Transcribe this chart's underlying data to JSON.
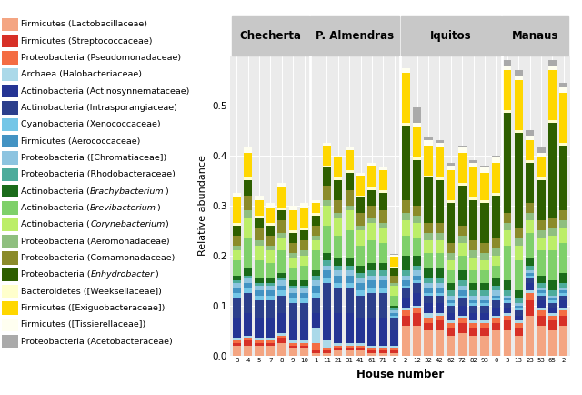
{
  "title": "",
  "ylabel": "Relative abundance",
  "xlabel": "House number",
  "ylim": [
    0,
    0.6
  ],
  "yticks": [
    0.0,
    0.1,
    0.2,
    0.3,
    0.4,
    0.5
  ],
  "groups": [
    "Checherta",
    "P. Almendras",
    "Iquitos",
    "Manaus"
  ],
  "houses": [
    "3",
    "4",
    "5",
    "7",
    "8",
    "9",
    "10",
    "1",
    "11",
    "21",
    "31",
    "41",
    "61",
    "71",
    "8",
    "2",
    "12",
    "32",
    "42",
    "62",
    "72",
    "82",
    "93",
    "0",
    "3",
    "13",
    "23",
    "53",
    "65",
    "2"
  ],
  "house_groups": [
    0,
    0,
    0,
    0,
    0,
    0,
    0,
    1,
    1,
    1,
    1,
    1,
    1,
    1,
    1,
    2,
    2,
    2,
    2,
    2,
    2,
    2,
    2,
    2,
    3,
    3,
    3,
    3,
    3,
    3
  ],
  "legend_labels": [
    "Firmicutes (Lactobacillaceae)",
    "Firmicutes (Streptococcaceae)",
    "Proteobacteria (Pseudomonadaceae)",
    "Archaea (Halobacteriaceae)",
    "Actinobacteria (Actinosynnemataceae)",
    "Actinobacteria (Intrasporangiaceae)",
    "Cyanobacteria (Xenococcaceae)",
    "Firmicutes (Aerococcaceae)",
    "Proteobacteria ([Chromatiaceae])",
    "Proteobacteria (Rhodobacteraceae)",
    "Actinobacteria (Brachybacterium)",
    "Actinobacteria (Brevibacterium)",
    "Actinobacteria (Corynebacterium)",
    "Proteobacteria (Aeromonadaceae)",
    "Proteobacteria (Comamonadaceae)",
    "Proteobacteria (Enhydrobacter)",
    "Bacteroidetes ([Weeksellaceae])",
    "Firmicutes ([Exiguobacteraceae])",
    "Firmicutes ([Tissierellaceae])",
    "Proteobacteria (Acetobacteraceae)"
  ],
  "italic_words": [
    "Brachybacterium",
    "Brevibacterium",
    "Corynebacterium",
    "Enhydrobacter"
  ],
  "colors": [
    "#F4A582",
    "#D73027",
    "#F46D43",
    "#ABD9E9",
    "#253494",
    "#2C3F8C",
    "#74C6E7",
    "#4393C3",
    "#8DC4E0",
    "#4DAC9B",
    "#1A6B1A",
    "#7FD06A",
    "#BCEE68",
    "#8FBF7F",
    "#8B8B2A",
    "#2E5F00",
    "#FFFFCC",
    "#FFD700",
    "#FFFFF0",
    "#AAAAAA"
  ],
  "background_color": "#EBEBEB",
  "bar_width": 0.75,
  "group_sep_color": "white",
  "bar_data": {
    "Checherta": {
      "3": [
        0.02,
        0.005,
        0.005,
        0.005,
        0.04,
        0.04,
        0.01,
        0.01,
        0.01,
        0.005,
        0.01,
        0.03,
        0.02,
        0.01,
        0.02,
        0.02,
        0.005,
        0.05,
        0.01,
        0.0
      ],
      "4": [
        0.02,
        0.01,
        0.005,
        0.005,
        0.045,
        0.04,
        0.01,
        0.01,
        0.01,
        0.005,
        0.015,
        0.06,
        0.04,
        0.015,
        0.03,
        0.03,
        0.005,
        0.05,
        0.01,
        0.0
      ],
      "5": [
        0.02,
        0.005,
        0.005,
        0.005,
        0.04,
        0.035,
        0.01,
        0.01,
        0.01,
        0.005,
        0.01,
        0.035,
        0.03,
        0.01,
        0.025,
        0.02,
        0.005,
        0.03,
        0.01,
        0.0
      ],
      "7": [
        0.02,
        0.005,
        0.005,
        0.005,
        0.04,
        0.035,
        0.01,
        0.01,
        0.01,
        0.005,
        0.01,
        0.03,
        0.025,
        0.01,
        0.02,
        0.02,
        0.005,
        0.03,
        0.01,
        0.0
      ],
      "8": [
        0.025,
        0.01,
        0.005,
        0.005,
        0.04,
        0.035,
        0.01,
        0.01,
        0.01,
        0.005,
        0.01,
        0.045,
        0.025,
        0.01,
        0.025,
        0.02,
        0.005,
        0.04,
        0.01,
        0.0
      ],
      "9": [
        0.015,
        0.005,
        0.005,
        0.005,
        0.04,
        0.035,
        0.01,
        0.01,
        0.01,
        0.005,
        0.01,
        0.025,
        0.02,
        0.01,
        0.02,
        0.02,
        0.005,
        0.04,
        0.01,
        0.0
      ],
      "10": [
        0.015,
        0.005,
        0.005,
        0.005,
        0.04,
        0.035,
        0.01,
        0.01,
        0.01,
        0.005,
        0.01,
        0.03,
        0.02,
        0.01,
        0.02,
        0.02,
        0.005,
        0.04,
        0.01,
        0.0
      ]
    },
    "P. Almendras": {
      "1": [
        0.005,
        0.005,
        0.015,
        0.03,
        0.03,
        0.03,
        0.01,
        0.015,
        0.01,
        0.01,
        0.01,
        0.04,
        0.02,
        0.01,
        0.02,
        0.02,
        0.005,
        0.02,
        0.005,
        0.0
      ],
      "11": [
        0.005,
        0.005,
        0.005,
        0.015,
        0.06,
        0.055,
        0.01,
        0.015,
        0.01,
        0.01,
        0.015,
        0.055,
        0.04,
        0.01,
        0.03,
        0.035,
        0.005,
        0.04,
        0.005,
        0.0
      ],
      "21": [
        0.01,
        0.005,
        0.005,
        0.005,
        0.06,
        0.05,
        0.01,
        0.015,
        0.01,
        0.01,
        0.015,
        0.045,
        0.035,
        0.01,
        0.025,
        0.04,
        0.005,
        0.04,
        0.005,
        0.0
      ],
      "31": [
        0.01,
        0.005,
        0.005,
        0.005,
        0.06,
        0.05,
        0.01,
        0.015,
        0.01,
        0.01,
        0.015,
        0.055,
        0.04,
        0.01,
        0.03,
        0.035,
        0.005,
        0.04,
        0.005,
        0.0
      ],
      "41": [
        0.01,
        0.005,
        0.005,
        0.005,
        0.05,
        0.045,
        0.01,
        0.015,
        0.01,
        0.01,
        0.015,
        0.04,
        0.03,
        0.01,
        0.025,
        0.03,
        0.005,
        0.04,
        0.005,
        0.0
      ],
      "61": [
        0.005,
        0.005,
        0.005,
        0.005,
        0.055,
        0.05,
        0.01,
        0.015,
        0.01,
        0.01,
        0.015,
        0.045,
        0.035,
        0.01,
        0.025,
        0.03,
        0.005,
        0.045,
        0.005,
        0.0
      ],
      "71": [
        0.005,
        0.005,
        0.005,
        0.005,
        0.055,
        0.05,
        0.01,
        0.015,
        0.01,
        0.01,
        0.015,
        0.04,
        0.03,
        0.01,
        0.025,
        0.035,
        0.005,
        0.04,
        0.005,
        0.0
      ],
      "8b": [
        0.005,
        0.005,
        0.005,
        0.005,
        0.03,
        0.025,
        0.005,
        0.005,
        0.005,
        0.005,
        0.005,
        0.02,
        0.02,
        0.005,
        0.015,
        0.015,
        0.003,
        0.02,
        0.003,
        0.002
      ]
    },
    "Iquitos": {
      "2": [
        0.06,
        0.02,
        0.01,
        0.005,
        0.02,
        0.02,
        0.005,
        0.01,
        0.01,
        0.01,
        0.03,
        0.04,
        0.03,
        0.015,
        0.025,
        0.15,
        0.005,
        0.1,
        0.01,
        0.0
      ],
      "12": [
        0.06,
        0.025,
        0.01,
        0.005,
        0.025,
        0.02,
        0.005,
        0.01,
        0.01,
        0.01,
        0.02,
        0.035,
        0.03,
        0.015,
        0.02,
        0.09,
        0.005,
        0.06,
        0.01,
        0.03
      ],
      "32": [
        0.05,
        0.015,
        0.01,
        0.01,
        0.02,
        0.015,
        0.005,
        0.01,
        0.01,
        0.01,
        0.02,
        0.03,
        0.025,
        0.015,
        0.02,
        0.09,
        0.005,
        0.06,
        0.01,
        0.005
      ],
      "42": [
        0.05,
        0.02,
        0.01,
        0.005,
        0.02,
        0.015,
        0.005,
        0.01,
        0.01,
        0.01,
        0.02,
        0.03,
        0.025,
        0.015,
        0.02,
        0.085,
        0.005,
        0.06,
        0.01,
        0.005
      ],
      "62": [
        0.04,
        0.015,
        0.01,
        0.005,
        0.015,
        0.015,
        0.005,
        0.005,
        0.01,
        0.01,
        0.015,
        0.025,
        0.02,
        0.015,
        0.02,
        0.08,
        0.005,
        0.06,
        0.01,
        0.005
      ],
      "72": [
        0.045,
        0.02,
        0.01,
        0.005,
        0.02,
        0.015,
        0.005,
        0.01,
        0.01,
        0.01,
        0.02,
        0.03,
        0.025,
        0.015,
        0.02,
        0.08,
        0.005,
        0.06,
        0.01,
        0.005
      ],
      "82": [
        0.04,
        0.015,
        0.01,
        0.005,
        0.015,
        0.015,
        0.005,
        0.005,
        0.01,
        0.01,
        0.015,
        0.025,
        0.025,
        0.015,
        0.02,
        0.08,
        0.005,
        0.06,
        0.01,
        0.005
      ],
      "93": [
        0.04,
        0.015,
        0.01,
        0.005,
        0.015,
        0.015,
        0.005,
        0.005,
        0.01,
        0.01,
        0.015,
        0.025,
        0.02,
        0.015,
        0.02,
        0.08,
        0.005,
        0.055,
        0.01,
        0.005
      ],
      "0": [
        0.05,
        0.015,
        0.01,
        0.005,
        0.015,
        0.015,
        0.005,
        0.005,
        0.01,
        0.01,
        0.015,
        0.025,
        0.02,
        0.015,
        0.02,
        0.085,
        0.005,
        0.06,
        0.01,
        0.005
      ]
    },
    "Manaus": {
      "3b": [
        0.05,
        0.02,
        0.01,
        0.005,
        0.01,
        0.01,
        0.005,
        0.005,
        0.005,
        0.01,
        0.02,
        0.07,
        0.03,
        0.015,
        0.02,
        0.2,
        0.005,
        0.08,
        0.01,
        0.01
      ],
      "13": [
        0.04,
        0.015,
        0.01,
        0.005,
        0.01,
        0.01,
        0.005,
        0.005,
        0.005,
        0.01,
        0.015,
        0.06,
        0.03,
        0.015,
        0.02,
        0.19,
        0.005,
        0.1,
        0.01,
        0.01
      ],
      "23": [
        0.08,
        0.03,
        0.015,
        0.005,
        0.015,
        0.01,
        0.005,
        0.005,
        0.005,
        0.01,
        0.015,
        0.05,
        0.025,
        0.015,
        0.02,
        0.08,
        0.005,
        0.04,
        0.01,
        0.01
      ],
      "53": [
        0.06,
        0.02,
        0.01,
        0.005,
        0.015,
        0.01,
        0.005,
        0.005,
        0.005,
        0.01,
        0.015,
        0.05,
        0.025,
        0.015,
        0.02,
        0.08,
        0.005,
        0.04,
        0.01,
        0.01
      ],
      "65": [
        0.05,
        0.02,
        0.01,
        0.005,
        0.01,
        0.01,
        0.005,
        0.005,
        0.005,
        0.01,
        0.02,
        0.06,
        0.03,
        0.015,
        0.02,
        0.19,
        0.005,
        0.1,
        0.01,
        0.01
      ],
      "2b": [
        0.06,
        0.02,
        0.01,
        0.005,
        0.015,
        0.01,
        0.005,
        0.005,
        0.005,
        0.01,
        0.02,
        0.06,
        0.03,
        0.015,
        0.02,
        0.13,
        0.005,
        0.1,
        0.01,
        0.01
      ]
    }
  }
}
